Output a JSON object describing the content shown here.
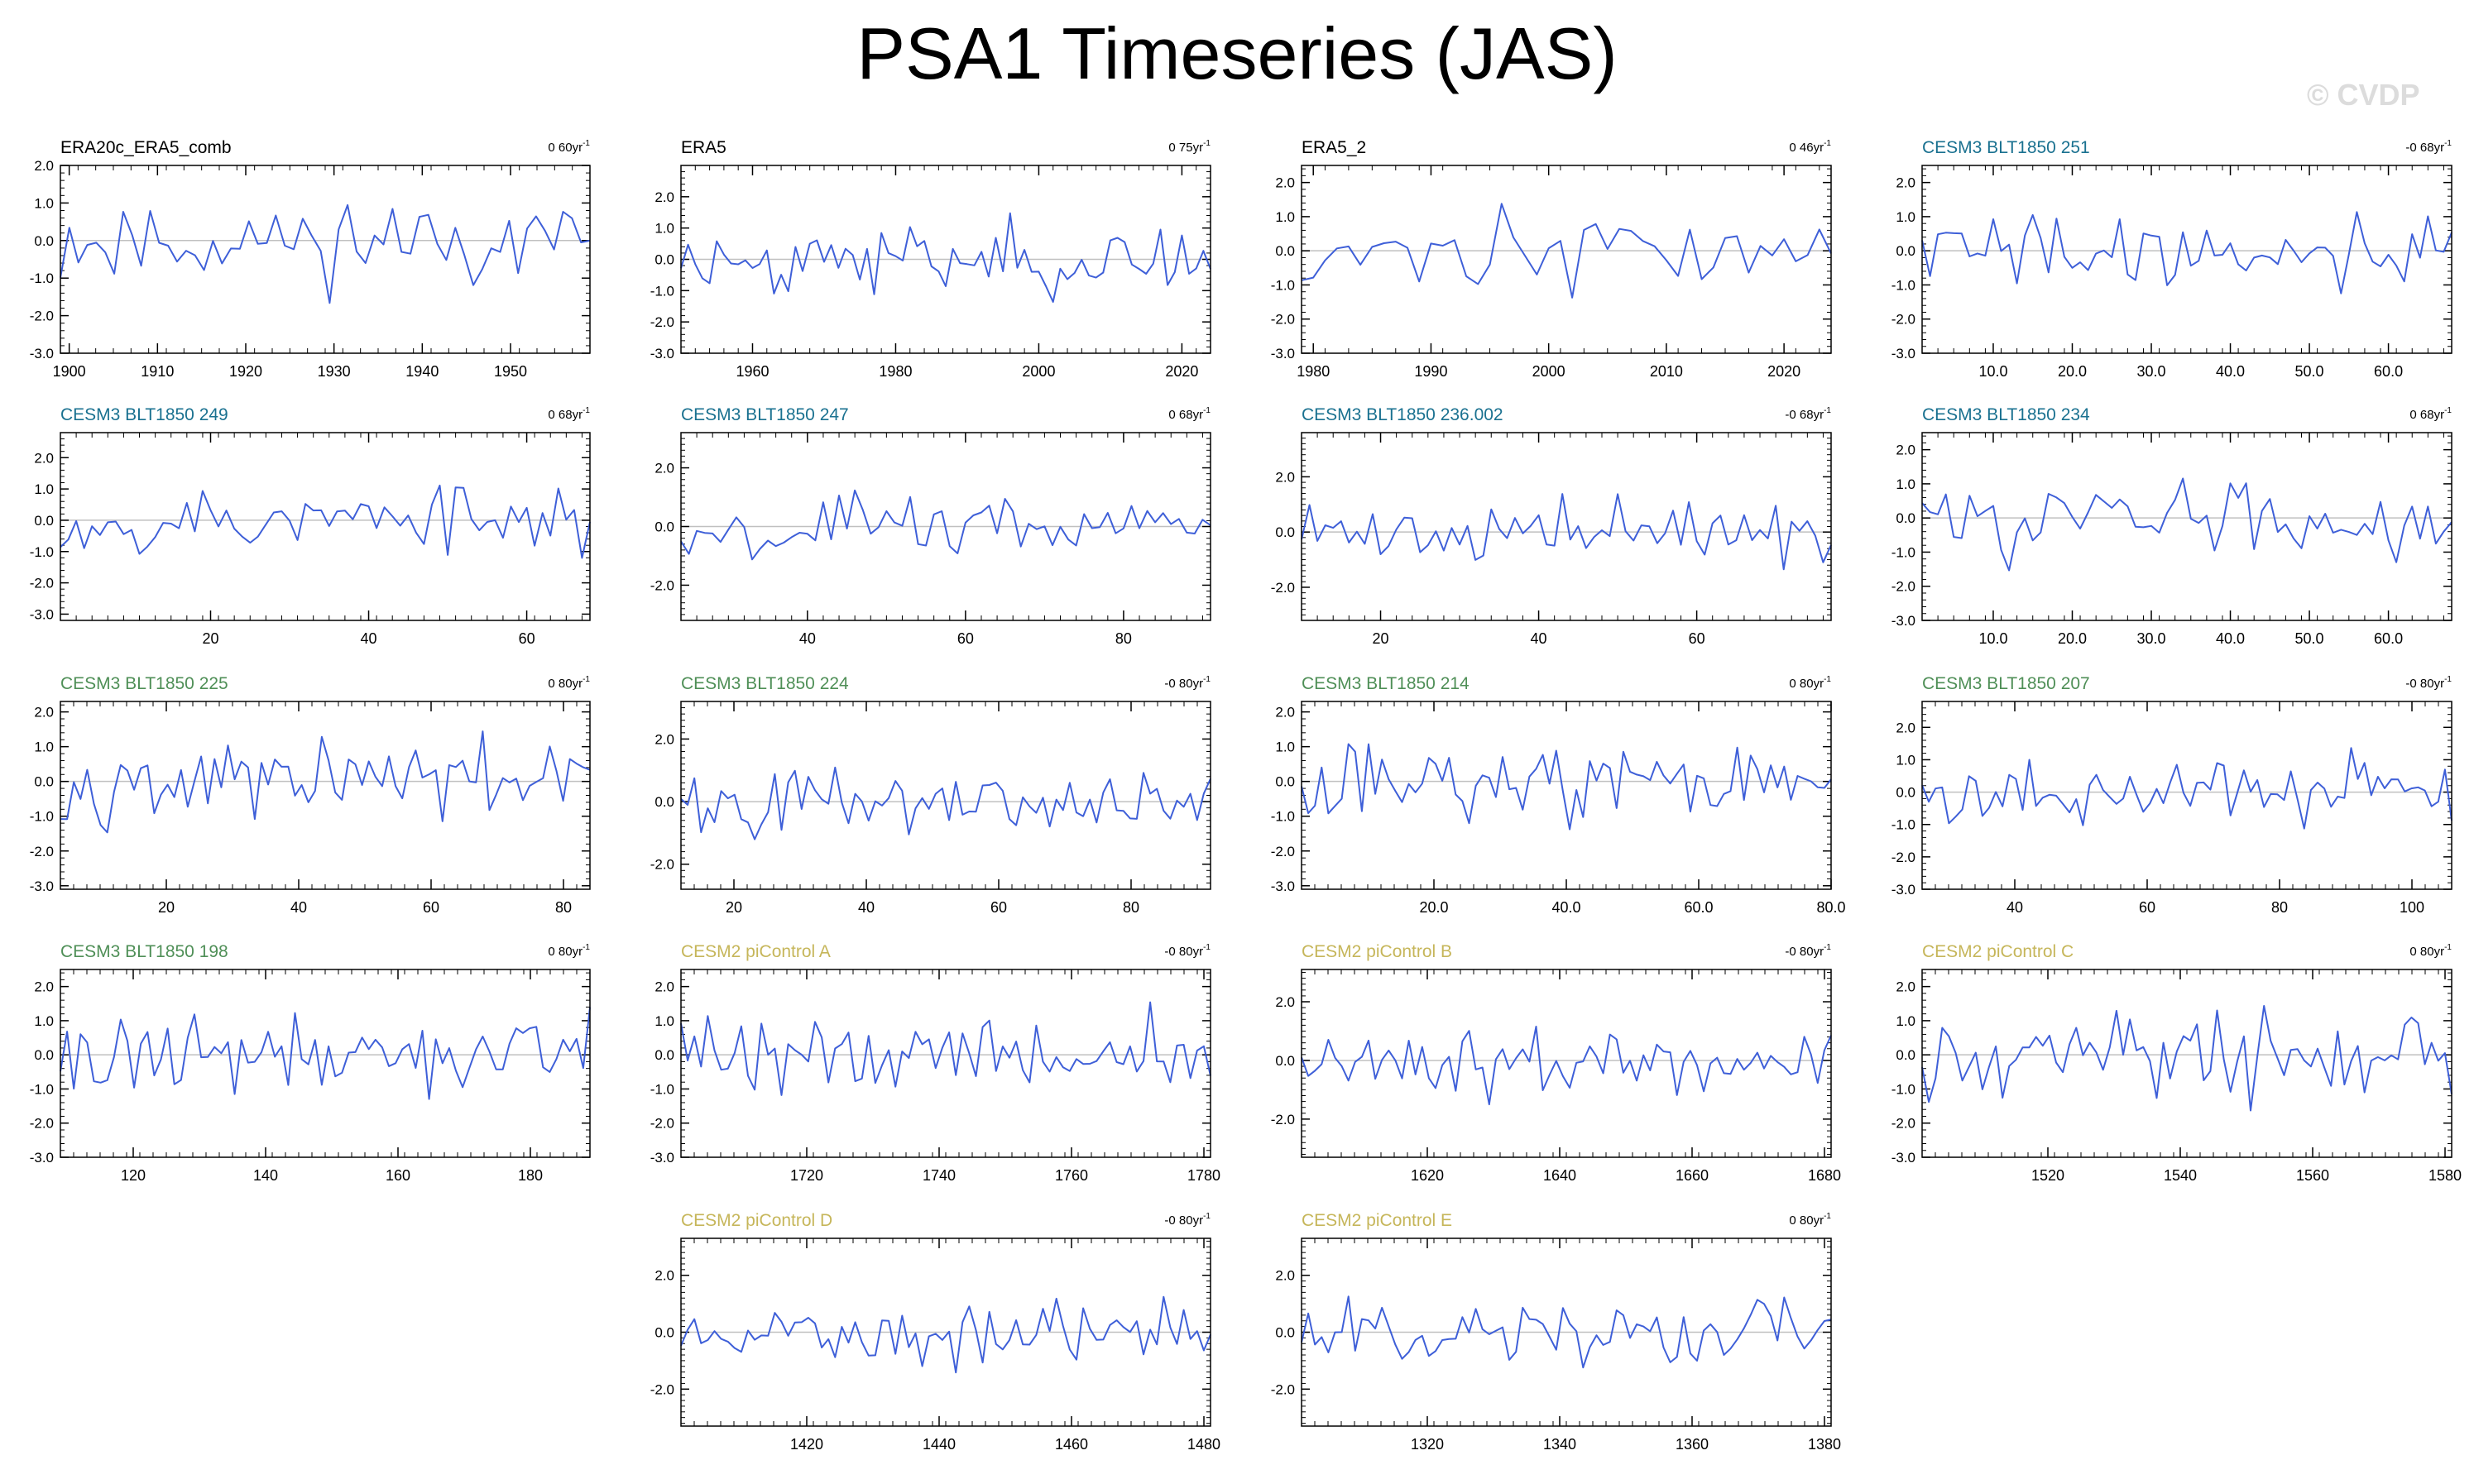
{
  "title": "PSA1 Timeseries (JAS)",
  "watermark": "© CVDP",
  "colors": {
    "line": "#3e5fd8",
    "era": "#000000",
    "cesm3_blue": "#1a7190",
    "cesm3_green": "#4f8f57",
    "cesm2": "#c6b65a",
    "zero_line": "#c0c0c0"
  },
  "chart_data": [
    {
      "type": "line",
      "title": "ERA20c_ERA5_comb",
      "trend": "0 60yr",
      "title_color": "era",
      "xlim": [
        1899,
        1959
      ],
      "ylim": [
        -3,
        2
      ],
      "xticks": [
        1900,
        1910,
        1920,
        1930,
        1940,
        1950
      ],
      "xtick_labels": [
        "1900",
        "1910",
        "1920",
        "1930",
        "1940",
        "1950"
      ],
      "yticks": [
        -3,
        -2,
        -1,
        0,
        1,
        2
      ],
      "ytick_labels": [
        "-3.0",
        "-2.0",
        "-1.0",
        "0.0",
        "1.0",
        "2.0"
      ],
      "n": 60,
      "seed": 11
    },
    {
      "type": "line",
      "title": "ERA5",
      "trend": "0 75yr",
      "title_color": "era",
      "xlim": [
        1950,
        2024
      ],
      "ylim": [
        -3,
        3
      ],
      "xticks": [
        1960,
        1980,
        2000,
        2020
      ],
      "xtick_labels": [
        "1960",
        "1980",
        "2000",
        "2020"
      ],
      "yticks": [
        -3,
        -2,
        -1,
        0,
        1,
        2
      ],
      "ytick_labels": [
        "-3.0",
        "-2.0",
        "-1.0",
        "0.0",
        "1.0",
        "2.0"
      ],
      "n": 75,
      "seed": 23
    },
    {
      "type": "line",
      "title": "ERA5_2",
      "trend": "0 46yr",
      "title_color": "era",
      "xlim": [
        1979,
        2024
      ],
      "ylim": [
        -3,
        2.5
      ],
      "xticks": [
        1980,
        1990,
        2000,
        2010,
        2020
      ],
      "xtick_labels": [
        "1980",
        "1990",
        "2000",
        "2010",
        "2020"
      ],
      "yticks": [
        -3,
        -2,
        -1,
        0,
        1,
        2
      ],
      "ytick_labels": [
        "-3.0",
        "-2.0",
        "-1.0",
        "0.0",
        "1.0",
        "2.0"
      ],
      "n": 46,
      "seed": 37
    },
    {
      "type": "line",
      "title": "CESM3 BLT1850 251",
      "trend": "-0 68yr",
      "title_color": "cesm3_blue",
      "xlim": [
        1,
        68
      ],
      "ylim": [
        -3,
        2.5
      ],
      "xticks": [
        10,
        20,
        30,
        40,
        50,
        60
      ],
      "xtick_labels": [
        "10.0",
        "20.0",
        "30.0",
        "40.0",
        "50.0",
        "60.0"
      ],
      "yticks": [
        -3,
        -2,
        -1,
        0,
        1,
        2
      ],
      "ytick_labels": [
        "-3.0",
        "-2.0",
        "-1.0",
        "0.0",
        "1.0",
        "2.0"
      ],
      "n": 68,
      "seed": 41
    },
    {
      "type": "line",
      "title": "CESM3 BLT1850 249",
      "trend": "0 68yr",
      "title_color": "cesm3_blue",
      "xlim": [
        1,
        68
      ],
      "ylim": [
        -3.2,
        2.8
      ],
      "xticks": [
        20,
        40,
        60
      ],
      "xtick_labels": [
        "20",
        "40",
        "60"
      ],
      "yticks": [
        -3,
        -2,
        -1,
        0,
        1,
        2
      ],
      "ytick_labels": [
        "-3.0",
        "-2.0",
        "-1.0",
        "0.0",
        "1.0",
        "2.0"
      ],
      "n": 68,
      "seed": 53
    },
    {
      "type": "line",
      "title": "CESM3 BLT1850 247",
      "trend": "0 68yr",
      "title_color": "cesm3_blue",
      "xlim": [
        24,
        91
      ],
      "ylim": [
        -3.2,
        3.2
      ],
      "xticks": [
        40,
        60,
        80
      ],
      "xtick_labels": [
        "40",
        "60",
        "80"
      ],
      "yticks": [
        -2,
        0,
        2
      ],
      "ytick_labels": [
        "-2.0",
        "0.0",
        "2.0"
      ],
      "n": 68,
      "seed": 67
    },
    {
      "type": "line",
      "title": "CESM3 BLT1850 236.002",
      "trend": "-0 68yr",
      "title_color": "cesm3_blue",
      "xlim": [
        10,
        77
      ],
      "ylim": [
        -3.2,
        3.6
      ],
      "xticks": [
        20,
        40,
        60
      ],
      "xtick_labels": [
        "20",
        "40",
        "60"
      ],
      "yticks": [
        -2,
        0,
        2
      ],
      "ytick_labels": [
        "-2.0",
        "0.0",
        "2.0"
      ],
      "n": 68,
      "seed": 71
    },
    {
      "type": "line",
      "title": "CESM3 BLT1850 234",
      "trend": "0 68yr",
      "title_color": "cesm3_blue",
      "xlim": [
        1,
        68
      ],
      "ylim": [
        -3,
        2.5
      ],
      "xticks": [
        10,
        20,
        30,
        40,
        50,
        60
      ],
      "xtick_labels": [
        "10.0",
        "20.0",
        "30.0",
        "40.0",
        "50.0",
        "60.0"
      ],
      "yticks": [
        -3,
        -2,
        -1,
        0,
        1,
        2
      ],
      "ytick_labels": [
        "-3.0",
        "-2.0",
        "-1.0",
        "0.0",
        "1.0",
        "2.0"
      ],
      "n": 68,
      "seed": 83
    },
    {
      "type": "line",
      "title": "CESM3 BLT1850 225",
      "trend": "0 80yr",
      "title_color": "cesm3_green",
      "xlim": [
        4,
        84
      ],
      "ylim": [
        -3.1,
        2.3
      ],
      "xticks": [
        20,
        40,
        60,
        80
      ],
      "xtick_labels": [
        "20",
        "40",
        "60",
        "80"
      ],
      "yticks": [
        -3,
        -2,
        -1,
        0,
        1,
        2
      ],
      "ytick_labels": [
        "-3.0",
        "-2.0",
        "-1.0",
        "0.0",
        "1.0",
        "2.0"
      ],
      "n": 80,
      "seed": 97
    },
    {
      "type": "line",
      "title": "CESM3 BLT1850 224",
      "trend": "-0 80yr",
      "title_color": "cesm3_green",
      "xlim": [
        12,
        92
      ],
      "ylim": [
        -2.8,
        3.2
      ],
      "xticks": [
        20,
        40,
        60,
        80
      ],
      "xtick_labels": [
        "20",
        "40",
        "60",
        "80"
      ],
      "yticks": [
        -2,
        0,
        2
      ],
      "ytick_labels": [
        "-2.0",
        "0.0",
        "2.0"
      ],
      "n": 80,
      "seed": 101
    },
    {
      "type": "line",
      "title": "CESM3 BLT1850 214",
      "trend": "0 80yr",
      "title_color": "cesm3_green",
      "xlim": [
        0,
        80
      ],
      "ylim": [
        -3.1,
        2.3
      ],
      "xticks": [
        20,
        40,
        60,
        80
      ],
      "xtick_labels": [
        "20.0",
        "40.0",
        "60.0",
        "80.0"
      ],
      "yticks": [
        -3,
        -2,
        -1,
        0,
        1,
        2
      ],
      "ytick_labels": [
        "-3.0",
        "-2.0",
        "-1.0",
        "0.0",
        "1.0",
        "2.0"
      ],
      "n": 80,
      "seed": 113
    },
    {
      "type": "line",
      "title": "CESM3 BLT1850 207",
      "trend": "-0 80yr",
      "title_color": "cesm3_green",
      "xlim": [
        26,
        106
      ],
      "ylim": [
        -3,
        2.8
      ],
      "xticks": [
        40,
        60,
        80,
        100
      ],
      "xtick_labels": [
        "40",
        "60",
        "80",
        "100"
      ],
      "yticks": [
        -3,
        -2,
        -1,
        0,
        1,
        2
      ],
      "ytick_labels": [
        "-3.0",
        "-2.0",
        "-1.0",
        "0.0",
        "1.0",
        "2.0"
      ],
      "n": 80,
      "seed": 127
    },
    {
      "type": "line",
      "title": "CESM3 BLT1850 198",
      "trend": "0 80yr",
      "title_color": "cesm3_green",
      "xlim": [
        109,
        189
      ],
      "ylim": [
        -3,
        2.5
      ],
      "xticks": [
        120,
        140,
        160,
        180
      ],
      "xtick_labels": [
        "120",
        "140",
        "160",
        "180"
      ],
      "yticks": [
        -3,
        -2,
        -1,
        0,
        1,
        2
      ],
      "ytick_labels": [
        "-3.0",
        "-2.0",
        "-1.0",
        "0.0",
        "1.0",
        "2.0"
      ],
      "n": 80,
      "seed": 131
    },
    {
      "type": "line",
      "title": "CESM2 piControl A",
      "trend": "-0 80yr",
      "title_color": "cesm2",
      "xlim": [
        1701,
        1781
      ],
      "ylim": [
        -3,
        2.5
      ],
      "xticks": [
        1720,
        1740,
        1760,
        1780
      ],
      "xtick_labels": [
        "1720",
        "1740",
        "1760",
        "1780"
      ],
      "yticks": [
        -3,
        -2,
        -1,
        0,
        1,
        2
      ],
      "ytick_labels": [
        "-3.0",
        "-2.0",
        "-1.0",
        "0.0",
        "1.0",
        "2.0"
      ],
      "n": 80,
      "seed": 139
    },
    {
      "type": "line",
      "title": "CESM2 piControl B",
      "trend": "-0 80yr",
      "title_color": "cesm2",
      "xlim": [
        1601,
        1681
      ],
      "ylim": [
        -3.3,
        3.1
      ],
      "xticks": [
        1620,
        1640,
        1660,
        1680
      ],
      "xtick_labels": [
        "1620",
        "1640",
        "1660",
        "1680"
      ],
      "yticks": [
        -2,
        0,
        2
      ],
      "ytick_labels": [
        "-2.0",
        "0.0",
        "2.0"
      ],
      "n": 80,
      "seed": 149
    },
    {
      "type": "line",
      "title": "CESM2 piControl C",
      "trend": "0 80yr",
      "title_color": "cesm2",
      "xlim": [
        1501,
        1581
      ],
      "ylim": [
        -3,
        2.5
      ],
      "xticks": [
        1520,
        1540,
        1560,
        1580
      ],
      "xtick_labels": [
        "1520",
        "1540",
        "1560",
        "1580"
      ],
      "yticks": [
        -3,
        -2,
        -1,
        0,
        1,
        2
      ],
      "ytick_labels": [
        "-3.0",
        "-2.0",
        "-1.0",
        "0.0",
        "1.0",
        "2.0"
      ],
      "n": 80,
      "seed": 157
    },
    {
      "type": "line",
      "title": "CESM2 piControl D",
      "trend": "-0 80yr",
      "title_color": "cesm2",
      "xlim": [
        1401,
        1481
      ],
      "ylim": [
        -3.3,
        3.3
      ],
      "xticks": [
        1420,
        1440,
        1460,
        1480
      ],
      "xtick_labels": [
        "1420",
        "1440",
        "1460",
        "1480"
      ],
      "yticks": [
        -2,
        0,
        2
      ],
      "ytick_labels": [
        "-2.0",
        "0.0",
        "2.0"
      ],
      "n": 80,
      "seed": 163
    },
    {
      "type": "line",
      "title": "CESM2 piControl E",
      "trend": "0 80yr",
      "title_color": "cesm2",
      "xlim": [
        1301,
        1381
      ],
      "ylim": [
        -3.3,
        3.3
      ],
      "xticks": [
        1320,
        1340,
        1360,
        1380
      ],
      "xtick_labels": [
        "1320",
        "1340",
        "1360",
        "1380"
      ],
      "yticks": [
        -2,
        0,
        2
      ],
      "ytick_labels": [
        "-2.0",
        "0.0",
        "2.0"
      ],
      "n": 80,
      "seed": 173
    }
  ]
}
